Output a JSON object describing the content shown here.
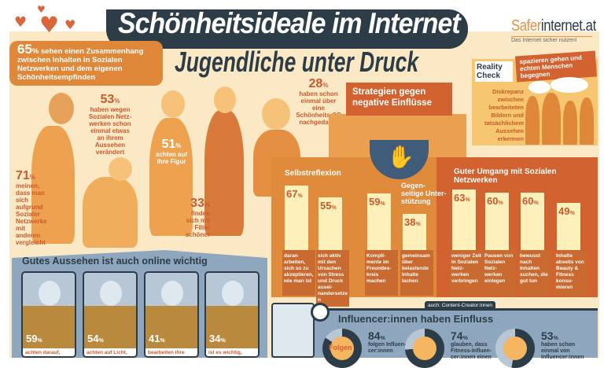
{
  "header": {
    "title": "Schönheitsideale im Internet",
    "subtitle": "Jugendliche unter Druck"
  },
  "logo": {
    "brand_a": "Safer",
    "brand_b": "internet.at",
    "tagline": "Das Internet sicher nutzen!"
  },
  "intro_stat": {
    "value": "65",
    "unit": "%",
    "text": "sehen einen Zusammenhang zwischen Inhalten in Sozialen Netzwerken und dem eigenen Schönheitsempfinden"
  },
  "stats": [
    {
      "value": "53",
      "unit": "%",
      "text": "haben wegen Sozialen Netz-werken schon einmal etwas an ihrem Aussehen verändert"
    },
    {
      "value": "51",
      "unit": "%",
      "text": "achten auf ihre Figur"
    },
    {
      "value": "28",
      "unit": "%",
      "text": "haben schon einmal über eine Schönheits-OP nachgedacht"
    },
    {
      "value": "71",
      "unit": "%",
      "text": "meinen, dass man sich aufgrund Sozialer Netzwerke mit anderen vergleicht"
    },
    {
      "value": "33",
      "unit": "%",
      "text": "finden sich mit Filter schöner"
    }
  ],
  "strategies": {
    "title": "Strategien gegen negative Einflüsse",
    "groups": [
      "Selbstreflexion",
      "Gegen-seitige Unter-stützung",
      "Guter Umgang mit Sozialen Netzwerken"
    ],
    "items": [
      {
        "value": 67,
        "text": "daran arbeiten, sich so zu akzeptieren, wie man ist"
      },
      {
        "value": 55,
        "text": "sich aktiv mit den Ursachen von Stress und Druck ausei-nandersetzen"
      },
      {
        "value": 59,
        "text": "Kompli-mente im Freundes-kreis machen"
      },
      {
        "value": 38,
        "text": "gemeinsam über belastende Inhalte lachen"
      },
      {
        "value": 63,
        "text": "weniger Zeit in Sozialen Netz-werken verbringen"
      },
      {
        "value": 60,
        "text": "Pausen von Sozialen Netz-werken einlegen"
      },
      {
        "value": 60,
        "text": "bewusst nach Inhalten suchen, die gut tun"
      },
      {
        "value": 49,
        "text": "Inhalte abseits von Beauty & Fitness konsu-mieren"
      }
    ],
    "unit": "%"
  },
  "reality_check": {
    "label": "Reality Check",
    "tag": "spazieren gehen und echten Menschen begegnen",
    "text": "Diskrepanz zwischen bearbeiteten Bildern und tatsächlichem Aussehen erkennen"
  },
  "online": {
    "title": "Gutes Aussehen ist auch online wichtig",
    "cards": [
      {
        "value": "59",
        "unit": "%",
        "text": "achten darauf,"
      },
      {
        "value": "54",
        "unit": "%",
        "text": "achten auf Licht,"
      },
      {
        "value": "41",
        "unit": "%",
        "text": "bearbeiten ihre"
      },
      {
        "value": "34",
        "unit": "%",
        "text": "ist es wichtig,"
      }
    ]
  },
  "influencer": {
    "title": "Influencer:innen haben Einfluss",
    "tag": "auch: Content-Creator:innen",
    "badge": "Folgen",
    "stats": [
      {
        "value": 84,
        "unit": "%",
        "text": "folgen Influen-cer:innen"
      },
      {
        "value": 74,
        "unit": "%",
        "text": "glauben, dass Fitness-Influen-cer:innen einen"
      },
      {
        "value": 53,
        "unit": "%",
        "text": "haben schon einmal von Influencer:innen"
      }
    ]
  },
  "colors": {
    "orange": "#e08a3c",
    "dark_orange": "#d2622f",
    "slate": "#2d3d48",
    "blue": "#8ea7be",
    "cream": "#fbe9c6",
    "bar": "#fdf0bb"
  }
}
